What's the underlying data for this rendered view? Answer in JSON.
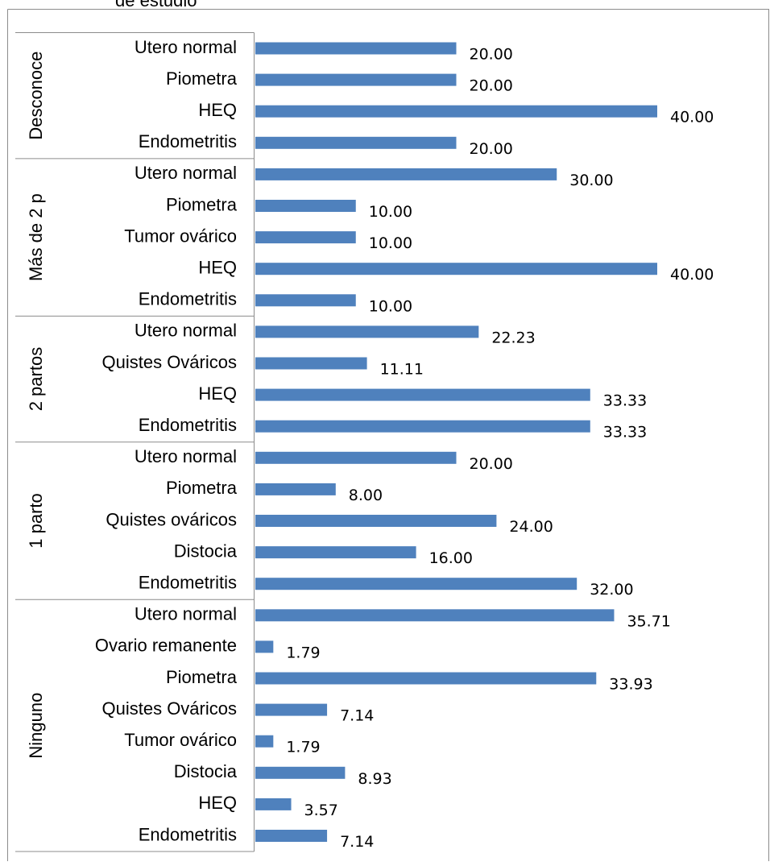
{
  "title_fragment": "de estudio",
  "chart_data": {
    "type": "bar",
    "orientation": "horizontal",
    "bar_color": "#4F81BD",
    "xlim": [
      0,
      40
    ],
    "gridlines": false,
    "legend": "none",
    "groups": [
      {
        "name": "Desconoce",
        "items": [
          {
            "label": "Utero normal",
            "value": 20.0,
            "text": "20.00"
          },
          {
            "label": "Piometra",
            "value": 20.0,
            "text": "20.00"
          },
          {
            "label": "HEQ",
            "value": 40.0,
            "text": "40.00"
          },
          {
            "label": "Endometritis",
            "value": 20.0,
            "text": "20.00"
          }
        ]
      },
      {
        "name": "Más de 2 p",
        "items": [
          {
            "label": "Utero normal",
            "value": 30.0,
            "text": "30.00"
          },
          {
            "label": "Piometra",
            "value": 10.0,
            "text": "10.00"
          },
          {
            "label": "Tumor ovárico",
            "value": 10.0,
            "text": "10.00"
          },
          {
            "label": "HEQ",
            "value": 40.0,
            "text": "40.00"
          },
          {
            "label": "Endometritis",
            "value": 10.0,
            "text": "10.00"
          }
        ]
      },
      {
        "name": "2 partos",
        "items": [
          {
            "label": "Utero normal",
            "value": 22.23,
            "text": "22.23"
          },
          {
            "label": "Quistes Ováricos",
            "value": 11.11,
            "text": "11.11"
          },
          {
            "label": "HEQ",
            "value": 33.33,
            "text": "33.33"
          },
          {
            "label": "Endometritis",
            "value": 33.33,
            "text": "33.33"
          }
        ]
      },
      {
        "name": "1 parto",
        "items": [
          {
            "label": "Utero normal",
            "value": 20.0,
            "text": "20.00"
          },
          {
            "label": "Piometra",
            "value": 8.0,
            "text": "8.00"
          },
          {
            "label": "Quistes ováricos",
            "value": 24.0,
            "text": "24.00"
          },
          {
            "label": "Distocia",
            "value": 16.0,
            "text": "16.00"
          },
          {
            "label": "Endometritis",
            "value": 32.0,
            "text": "32.00"
          }
        ]
      },
      {
        "name": "Ninguno",
        "items": [
          {
            "label": "Utero normal",
            "value": 35.71,
            "text": "35.71"
          },
          {
            "label": "Ovario remanente",
            "value": 1.79,
            "text": "1.79"
          },
          {
            "label": "Piometra",
            "value": 33.93,
            "text": "33.93"
          },
          {
            "label": "Quistes Ováricos",
            "value": 7.14,
            "text": "7.14"
          },
          {
            "label": "Tumor ovárico",
            "value": 1.79,
            "text": "1.79"
          },
          {
            "label": "Distocia",
            "value": 8.93,
            "text": "8.93"
          },
          {
            "label": "HEQ",
            "value": 3.57,
            "text": "3.57"
          },
          {
            "label": "Endometritis",
            "value": 7.14,
            "text": "7.14"
          }
        ]
      }
    ]
  }
}
